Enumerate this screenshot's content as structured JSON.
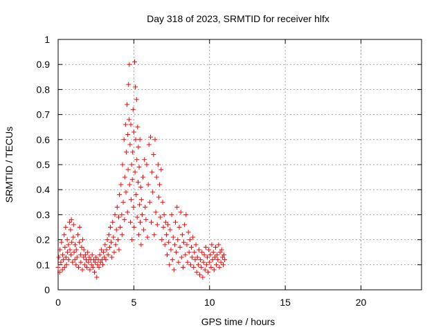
{
  "chart_data": {
    "type": "scatter",
    "title": "Day 318 of 2023, SRMTID for receiver hlfx",
    "xlabel": "GPS time / hours",
    "ylabel": "SRMTID / TECUs",
    "xlim": [
      0,
      24
    ],
    "ylim": [
      0,
      1
    ],
    "xticks": [
      0,
      5,
      10,
      15,
      20
    ],
    "xtick_labels": [
      "0",
      "5",
      "10",
      "15",
      "20"
    ],
    "yticks": [
      0,
      0.1,
      0.2,
      0.3,
      0.4,
      0.5,
      0.6,
      0.7,
      0.8,
      0.9,
      1
    ],
    "ytick_labels": [
      "0",
      "0.1",
      "0.2",
      "0.3",
      "0.4",
      "0.5",
      "0.6",
      "0.7",
      "0.8",
      "0.9",
      "1"
    ],
    "grid": true,
    "marker": "+",
    "color": "#ff0000",
    "series": [
      {
        "name": "SRMTID",
        "points": [
          [
            0.0,
            0.09
          ],
          [
            0.05,
            0.13
          ],
          [
            0.1,
            0.07
          ],
          [
            0.12,
            0.16
          ],
          [
            0.18,
            0.11
          ],
          [
            0.22,
            0.19
          ],
          [
            0.28,
            0.08
          ],
          [
            0.3,
            0.14
          ],
          [
            0.35,
            0.12
          ],
          [
            0.4,
            0.22
          ],
          [
            0.42,
            0.09
          ],
          [
            0.45,
            0.17
          ],
          [
            0.5,
            0.25
          ],
          [
            0.52,
            0.13
          ],
          [
            0.55,
            0.1
          ],
          [
            0.6,
            0.2
          ],
          [
            0.62,
            0.15
          ],
          [
            0.68,
            0.18
          ],
          [
            0.7,
            0.12
          ],
          [
            0.75,
            0.27
          ],
          [
            0.78,
            0.16
          ],
          [
            0.82,
            0.24
          ],
          [
            0.85,
            0.14
          ],
          [
            0.88,
            0.28
          ],
          [
            0.9,
            0.19
          ],
          [
            0.95,
            0.11
          ],
          [
            1.0,
            0.21
          ],
          [
            1.02,
            0.26
          ],
          [
            1.05,
            0.15
          ],
          [
            1.1,
            0.12
          ],
          [
            1.12,
            0.18
          ],
          [
            1.18,
            0.1
          ],
          [
            1.2,
            0.16
          ],
          [
            1.25,
            0.13
          ],
          [
            1.3,
            0.22
          ],
          [
            1.35,
            0.09
          ],
          [
            1.4,
            0.19
          ],
          [
            1.42,
            0.25
          ],
          [
            1.48,
            0.14
          ],
          [
            1.5,
            0.11
          ],
          [
            1.55,
            0.17
          ],
          [
            1.6,
            0.08
          ],
          [
            1.62,
            0.2
          ],
          [
            1.68,
            0.13
          ],
          [
            1.7,
            0.16
          ],
          [
            1.75,
            0.1
          ],
          [
            1.8,
            0.14
          ],
          [
            1.85,
            0.12
          ],
          [
            1.9,
            0.09
          ],
          [
            1.95,
            0.15
          ],
          [
            2.0,
            0.11
          ],
          [
            2.05,
            0.13
          ],
          [
            2.1,
            0.08
          ],
          [
            2.15,
            0.12
          ],
          [
            2.2,
            0.1
          ],
          [
            2.25,
            0.14
          ],
          [
            2.3,
            0.09
          ],
          [
            2.35,
            0.12
          ],
          [
            2.4,
            0.07
          ],
          [
            2.45,
            0.11
          ],
          [
            2.5,
            0.13
          ],
          [
            2.55,
            0.05
          ],
          [
            2.6,
            0.1
          ],
          [
            2.65,
            0.12
          ],
          [
            2.7,
            0.09
          ],
          [
            2.75,
            0.14
          ],
          [
            2.8,
            0.11
          ],
          [
            2.85,
            0.16
          ],
          [
            2.9,
            0.12
          ],
          [
            2.95,
            0.1
          ],
          [
            3.0,
            0.15
          ],
          [
            3.05,
            0.13
          ],
          [
            3.1,
            0.18
          ],
          [
            3.15,
            0.12
          ],
          [
            3.2,
            0.16
          ],
          [
            3.25,
            0.2
          ],
          [
            3.3,
            0.14
          ],
          [
            3.35,
            0.22
          ],
          [
            3.4,
            0.17
          ],
          [
            3.45,
            0.25
          ],
          [
            3.5,
            0.19
          ],
          [
            3.55,
            0.13
          ],
          [
            3.6,
            0.27
          ],
          [
            3.65,
            0.21
          ],
          [
            3.7,
            0.15
          ],
          [
            3.75,
            0.3
          ],
          [
            3.8,
            0.18
          ],
          [
            3.85,
            0.24
          ],
          [
            3.9,
            0.33
          ],
          [
            3.95,
            0.2
          ],
          [
            4.0,
            0.29
          ],
          [
            4.02,
            0.16
          ],
          [
            4.05,
            0.38
          ],
          [
            4.1,
            0.25
          ],
          [
            4.15,
            0.42
          ],
          [
            4.2,
            0.3
          ],
          [
            4.22,
            0.22
          ],
          [
            4.25,
            0.5
          ],
          [
            4.3,
            0.35
          ],
          [
            4.35,
            0.6
          ],
          [
            4.38,
            0.28
          ],
          [
            4.4,
            0.45
          ],
          [
            4.45,
            0.66
          ],
          [
            4.48,
            0.39
          ],
          [
            4.5,
            0.55
          ],
          [
            4.55,
            0.74
          ],
          [
            4.58,
            0.31
          ],
          [
            4.6,
            0.62
          ],
          [
            4.62,
            0.48
          ],
          [
            4.65,
            0.82
          ],
          [
            4.68,
            0.68
          ],
          [
            4.7,
            0.9
          ],
          [
            4.72,
            0.42
          ],
          [
            4.75,
            0.58
          ],
          [
            4.78,
            0.27
          ],
          [
            4.8,
            0.66
          ],
          [
            4.82,
            0.36
          ],
          [
            4.85,
            0.5
          ],
          [
            4.88,
            0.2
          ],
          [
            4.9,
            0.44
          ],
          [
            4.92,
            0.55
          ],
          [
            4.95,
            0.72
          ],
          [
            4.98,
            0.33
          ],
          [
            5.0,
            0.63
          ],
          [
            5.02,
            0.25
          ],
          [
            5.05,
            0.91
          ],
          [
            5.08,
            0.47
          ],
          [
            5.1,
            0.81
          ],
          [
            5.12,
            0.6
          ],
          [
            5.15,
            0.38
          ],
          [
            5.18,
            0.76
          ],
          [
            5.2,
            0.52
          ],
          [
            5.22,
            0.29
          ],
          [
            5.25,
            0.65
          ],
          [
            5.28,
            0.43
          ],
          [
            5.3,
            0.57
          ],
          [
            5.32,
            0.22
          ],
          [
            5.35,
            0.49
          ],
          [
            5.38,
            0.34
          ],
          [
            5.4,
            0.6
          ],
          [
            5.42,
            0.27
          ],
          [
            5.45,
            0.41
          ],
          [
            5.48,
            0.18
          ],
          [
            5.5,
            0.36
          ],
          [
            5.55,
            0.3
          ],
          [
            5.6,
            0.45
          ],
          [
            5.65,
            0.24
          ],
          [
            5.7,
            0.52
          ],
          [
            5.75,
            0.33
          ],
          [
            5.8,
            0.28
          ],
          [
            5.85,
            0.5
          ],
          [
            5.9,
            0.21
          ],
          [
            5.95,
            0.42
          ],
          [
            6.0,
            0.58
          ],
          [
            6.05,
            0.35
          ],
          [
            6.1,
            0.61
          ],
          [
            6.15,
            0.27
          ],
          [
            6.2,
            0.47
          ],
          [
            6.25,
            0.39
          ],
          [
            6.3,
            0.54
          ],
          [
            6.35,
            0.22
          ],
          [
            6.4,
            0.6
          ],
          [
            6.45,
            0.31
          ],
          [
            6.5,
            0.45
          ],
          [
            6.55,
            0.26
          ],
          [
            6.6,
            0.5
          ],
          [
            6.65,
            0.37
          ],
          [
            6.7,
            0.42
          ],
          [
            6.75,
            0.29
          ],
          [
            6.8,
            0.48
          ],
          [
            6.85,
            0.2
          ],
          [
            6.9,
            0.35
          ],
          [
            6.95,
            0.25
          ],
          [
            7.0,
            0.3
          ],
          [
            7.05,
            0.18
          ],
          [
            7.1,
            0.27
          ],
          [
            7.15,
            0.22
          ],
          [
            7.2,
            0.14
          ],
          [
            7.25,
            0.26
          ],
          [
            7.3,
            0.19
          ],
          [
            7.35,
            0.1
          ],
          [
            7.4,
            0.24
          ],
          [
            7.45,
            0.16
          ],
          [
            7.5,
            0.3
          ],
          [
            7.55,
            0.12
          ],
          [
            7.6,
            0.21
          ],
          [
            7.65,
            0.08
          ],
          [
            7.7,
            0.18
          ],
          [
            7.75,
            0.27
          ],
          [
            7.8,
            0.15
          ],
          [
            7.85,
            0.33
          ],
          [
            7.9,
            0.2
          ],
          [
            7.95,
            0.11
          ],
          [
            8.0,
            0.25
          ],
          [
            8.05,
            0.17
          ],
          [
            8.1,
            0.31
          ],
          [
            8.15,
            0.13
          ],
          [
            8.2,
            0.22
          ],
          [
            8.25,
            0.09
          ],
          [
            8.3,
            0.19
          ],
          [
            8.35,
            0.26
          ],
          [
            8.4,
            0.14
          ],
          [
            8.45,
            0.3
          ],
          [
            8.5,
            0.18
          ],
          [
            8.55,
            0.11
          ],
          [
            8.6,
            0.23
          ],
          [
            8.65,
            0.15
          ],
          [
            8.7,
            0.2
          ],
          [
            8.75,
            0.1
          ],
          [
            8.8,
            0.17
          ],
          [
            8.85,
            0.13
          ],
          [
            8.9,
            0.21
          ],
          [
            8.95,
            0.09
          ],
          [
            9.0,
            0.15
          ],
          [
            9.05,
            0.12
          ],
          [
            9.1,
            0.18
          ],
          [
            9.15,
            0.07
          ],
          [
            9.2,
            0.13
          ],
          [
            9.25,
            0.1
          ],
          [
            9.3,
            0.16
          ],
          [
            9.35,
            0.06
          ],
          [
            9.4,
            0.12
          ],
          [
            9.45,
            0.09
          ],
          [
            9.5,
            0.15
          ],
          [
            9.55,
            0.05
          ],
          [
            9.6,
            0.11
          ],
          [
            9.65,
            0.14
          ],
          [
            9.7,
            0.08
          ],
          [
            9.75,
            0.17
          ],
          [
            9.8,
            0.1
          ],
          [
            9.85,
            0.13
          ],
          [
            9.9,
            0.07
          ],
          [
            9.95,
            0.16
          ],
          [
            10.0,
            0.11
          ],
          [
            10.05,
            0.14
          ],
          [
            10.1,
            0.09
          ],
          [
            10.15,
            0.18
          ],
          [
            10.2,
            0.12
          ],
          [
            10.25,
            0.15
          ],
          [
            10.3,
            0.08
          ],
          [
            10.35,
            0.13
          ],
          [
            10.4,
            0.17
          ],
          [
            10.45,
            0.1
          ],
          [
            10.5,
            0.14
          ],
          [
            10.55,
            0.12
          ],
          [
            10.6,
            0.18
          ],
          [
            10.65,
            0.09
          ],
          [
            10.7,
            0.15
          ],
          [
            10.75,
            0.11
          ],
          [
            10.8,
            0.16
          ],
          [
            10.85,
            0.13
          ],
          [
            10.9,
            0.1
          ],
          [
            10.95,
            0.14
          ],
          [
            11.0,
            0.12
          ]
        ]
      }
    ]
  }
}
